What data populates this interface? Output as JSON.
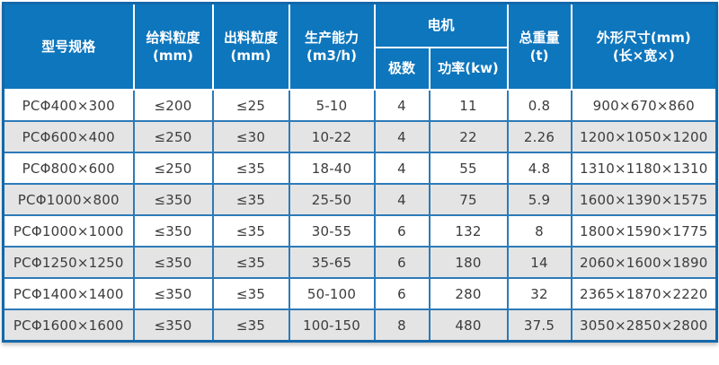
{
  "colors": {
    "header_bg": "#0e76bd",
    "header_text": "#ffffff",
    "outer_border": "#1468aa",
    "grid_line": "#2d7ab8",
    "header_divider": "#ffffff",
    "row_bg": "#ffffff",
    "row_alt_bg": "#e4e4e4",
    "body_text": "#3c3c3c"
  },
  "chart_data": {
    "type": "table",
    "title": "",
    "header": {
      "model": "型号规格",
      "feed_size": "给料粒度\n(mm)",
      "discharge_size": "出料粒度\n(mm)",
      "capacity": "生产能力\n(m3/h)",
      "motor_group": "电机",
      "motor_poles": "极数",
      "motor_power": "功率(kw)",
      "total_weight": "总重量\n(t)",
      "dimensions": "外形尺寸(mm)\n(长×宽×)"
    },
    "columns": [
      "型号规格",
      "给料粒度(mm)",
      "出料粒度(mm)",
      "生产能力(m3/h)",
      "电机 极数",
      "电机 功率(kw)",
      "总重量(t)",
      "外形尺寸(mm)(长×宽×)"
    ],
    "rows": [
      [
        "PCΦ400×300",
        "≤200",
        "≤25",
        "5-10",
        "4",
        "11",
        "0.8",
        "900×670×860"
      ],
      [
        "PCΦ600×400",
        "≤250",
        "≤30",
        "10-22",
        "4",
        "22",
        "2.26",
        "1200×1050×1200"
      ],
      [
        "PCΦ800×600",
        "≤250",
        "≤35",
        "18-40",
        "4",
        "55",
        "4.8",
        "1310×1180×1310"
      ],
      [
        "PCΦ1000×800",
        "≤350",
        "≤35",
        "25-50",
        "4",
        "75",
        "5.9",
        "1600×1390×1575"
      ],
      [
        "PCΦ1000×1000",
        "≤350",
        "≤35",
        "30-55",
        "6",
        "132",
        "8",
        "1800×1590×1775"
      ],
      [
        "PCΦ1250×1250",
        "≤350",
        "≤35",
        "35-65",
        "6",
        "180",
        "14",
        "2060×1600×1890"
      ],
      [
        "PCΦ1400×1400",
        "≤350",
        "≤35",
        "50-100",
        "6",
        "280",
        "32",
        "2365×1870×2220"
      ],
      [
        "PCΦ1600×1600",
        "≤350",
        "≤35",
        "100-150",
        "8",
        "480",
        "37.5",
        "3050×2850×2800"
      ]
    ]
  }
}
